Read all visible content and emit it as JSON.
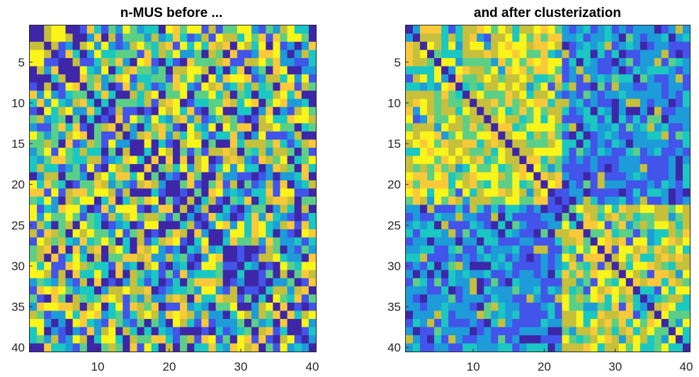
{
  "chart_data": [
    {
      "type": "heatmap",
      "title": "n-MUS before ...",
      "size": 40,
      "pattern": "random",
      "xticks": [
        "10",
        "20",
        "30",
        "40"
      ],
      "yticks": [
        "5",
        "10",
        "15",
        "20",
        "25",
        "30",
        "35",
        "40"
      ],
      "xlim": [
        0.5,
        40.5
      ],
      "ylim": [
        0.5,
        40.5
      ],
      "colormap": [
        "#3e26a8",
        "#4254ea",
        "#1e9bd9",
        "#1ac7c2",
        "#5ccf86",
        "#c6c03c",
        "#f9c93a",
        "#f9f41a"
      ],
      "diagonal_color": "#3e26a8"
    },
    {
      "type": "heatmap",
      "title": "and after clusterization",
      "size": 40,
      "pattern": "block-clustered",
      "clusters": [
        [
          1,
          22
        ],
        [
          23,
          40
        ]
      ],
      "xticks": [
        "10",
        "20",
        "30",
        "40"
      ],
      "yticks": [
        "5",
        "10",
        "15",
        "20",
        "25",
        "30",
        "35",
        "40"
      ],
      "xlim": [
        0.5,
        40.5
      ],
      "ylim": [
        0.5,
        40.5
      ],
      "colormap": [
        "#3e26a8",
        "#4254ea",
        "#1e9bd9",
        "#1ac7c2",
        "#5ccf86",
        "#c6c03c",
        "#f9c93a",
        "#f9f41a"
      ],
      "diagonal_color": "#3e26a8"
    }
  ]
}
